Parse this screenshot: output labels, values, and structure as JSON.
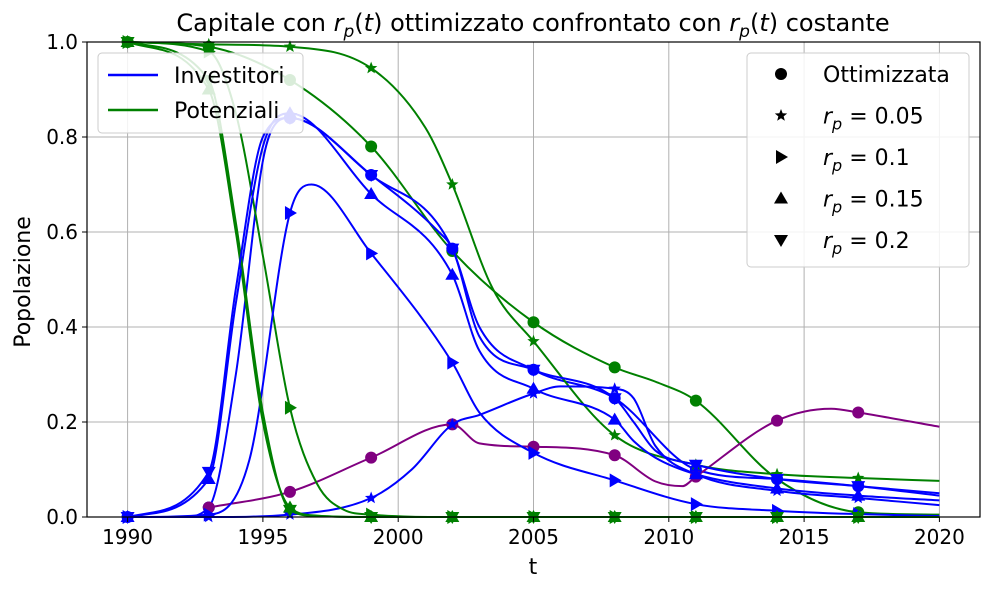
{
  "chart_data": {
    "type": "line",
    "title_parts": [
      "Capitale con ",
      "r",
      "p",
      "(",
      "t",
      ") ottimizzato confrontato con ",
      "r",
      "p",
      "(",
      "t",
      ") costante"
    ],
    "xlabel": "t",
    "ylabel": "Popolazione",
    "xlim": [
      1988.5,
      2021.5
    ],
    "ylim": [
      0,
      1.0
    ],
    "xticks": [
      1990,
      1995,
      2000,
      2005,
      2010,
      2015,
      2020
    ],
    "yticks": [
      0.0,
      0.2,
      0.4,
      0.6,
      0.8,
      1.0
    ],
    "xtick_labels": [
      "1990",
      "1995",
      "2000",
      "2005",
      "2010",
      "2015",
      "2020"
    ],
    "ytick_labels": [
      "0.0",
      "0.2",
      "0.4",
      "0.6",
      "0.8",
      "1.0"
    ],
    "grid": true,
    "colors": {
      "investitori": "#0000ff",
      "potenziali": "#008000",
      "optimized": "#800080"
    },
    "legend_color": {
      "placement": "upper-left",
      "entries": [
        {
          "label": "Investitori",
          "color": "#0000ff"
        },
        {
          "label": "Potenziali",
          "color": "#008000"
        }
      ]
    },
    "legend_marker": {
      "placement": "upper-right",
      "entries": [
        {
          "marker": "circle",
          "label": "Ottimizzata",
          "math": false
        },
        {
          "marker": "star",
          "label": "r_p = 0.05",
          "math": true,
          "value": "0.05"
        },
        {
          "marker": "triangle-right",
          "label": "r_p = 0.1",
          "math": true,
          "value": "0.1"
        },
        {
          "marker": "triangle-up",
          "label": "r_p = 0.15",
          "math": true,
          "value": "0.15"
        },
        {
          "marker": "triangle-down",
          "label": "r_p = 0.2",
          "math": true,
          "value": "0.2"
        }
      ]
    },
    "series": [
      {
        "group": "potenziali",
        "color": "#008000",
        "marker": "circle",
        "x": [
          1990,
          1993,
          1996,
          1999,
          2002,
          2005,
          2008,
          2009.5,
          2011,
          2014,
          2017,
          2020
        ],
        "y": [
          1.0,
          0.99,
          0.92,
          0.78,
          0.56,
          0.41,
          0.315,
          0.285,
          0.245,
          0.08,
          0.01,
          0.005
        ]
      },
      {
        "group": "investitori",
        "color": "#0000ff",
        "marker": "circle",
        "x": [
          1990,
          1992,
          1993,
          1994,
          1995,
          1995.5,
          1996,
          1999,
          2001.5,
          2002,
          2003,
          2005,
          2008,
          2011,
          2014,
          2017,
          2020
        ],
        "y": [
          0.0,
          0.0,
          0.02,
          0.3,
          0.75,
          0.83,
          0.84,
          0.72,
          0.6,
          0.565,
          0.4,
          0.31,
          0.25,
          0.1,
          0.08,
          0.065,
          0.045
        ]
      },
      {
        "group": "optimized",
        "color": "#800080",
        "marker": "circle",
        "x": [
          1993,
          1996,
          1999,
          2002,
          2003,
          2005,
          2008,
          2009.5,
          2010.5,
          2011,
          2014,
          2016,
          2017,
          2020
        ],
        "y": [
          0.02,
          0.053,
          0.125,
          0.195,
          0.155,
          0.148,
          0.13,
          0.075,
          0.065,
          0.085,
          0.203,
          0.228,
          0.22,
          0.19
        ]
      },
      {
        "group": "potenziali",
        "color": "#008000",
        "marker": "star",
        "x": [
          1990,
          1993,
          1996,
          1999,
          2001,
          2002,
          2003.5,
          2005,
          2008,
          2011,
          2014,
          2017,
          2020
        ],
        "y": [
          1.0,
          0.995,
          0.99,
          0.945,
          0.82,
          0.7,
          0.48,
          0.37,
          0.172,
          0.11,
          0.09,
          0.082,
          0.076
        ]
      },
      {
        "group": "investitori",
        "color": "#0000ff",
        "marker": "star",
        "x": [
          1990,
          1993,
          1996,
          1999,
          2000.5,
          2002,
          2003,
          2005,
          2006,
          2008,
          2008.7,
          2009.5,
          2011,
          2014,
          2017,
          2020
        ],
        "y": [
          0.0,
          0.0,
          0.005,
          0.04,
          0.1,
          0.195,
          0.215,
          0.26,
          0.275,
          0.27,
          0.25,
          0.15,
          0.09,
          0.055,
          0.04,
          0.025
        ]
      },
      {
        "group": "potenziali",
        "color": "#008000",
        "marker": "triangle-right",
        "x": [
          1990,
          1993,
          1994,
          1995,
          1996,
          1997,
          1998,
          1999,
          2002,
          2020
        ],
        "y": [
          1.0,
          0.98,
          0.85,
          0.55,
          0.23,
          0.07,
          0.015,
          0.005,
          0.0,
          0.0
        ]
      },
      {
        "group": "investitori",
        "color": "#0000ff",
        "marker": "triangle-right",
        "x": [
          1990,
          1993,
          1994.5,
          1996,
          1996.8,
          1999,
          2002,
          2003,
          2005,
          2008,
          2011,
          2014,
          2017,
          2020
        ],
        "y": [
          0.0,
          0.005,
          0.12,
          0.64,
          0.7,
          0.555,
          0.325,
          0.22,
          0.135,
          0.077,
          0.027,
          0.013,
          0.006,
          0.002
        ]
      },
      {
        "group": "potenziali",
        "color": "#008000",
        "marker": "triangle-up",
        "x": [
          1990,
          1993,
          1994,
          1995,
          1996,
          1997,
          1999,
          2020
        ],
        "y": [
          1.0,
          0.9,
          0.6,
          0.2,
          0.02,
          0.003,
          0.0,
          0.0
        ]
      },
      {
        "group": "investitori",
        "color": "#0000ff",
        "marker": "triangle-up",
        "x": [
          1990,
          1993,
          1994,
          1995,
          1996,
          1999,
          2002,
          2003,
          2005,
          2008,
          2008.7,
          2009.5,
          2011,
          2014,
          2017,
          2020
        ],
        "y": [
          0.0,
          0.08,
          0.45,
          0.78,
          0.85,
          0.68,
          0.51,
          0.35,
          0.27,
          0.205,
          0.16,
          0.125,
          0.09,
          0.06,
          0.045,
          0.035
        ]
      },
      {
        "group": "potenziali",
        "color": "#008000",
        "marker": "triangle-down",
        "x": [
          1990,
          1993,
          1994,
          1995,
          1996,
          1997,
          1999,
          2020
        ],
        "y": [
          1.0,
          0.92,
          0.62,
          0.22,
          0.015,
          0.002,
          0.0,
          0.0
        ]
      },
      {
        "group": "investitori",
        "color": "#0000ff",
        "marker": "triangle-down",
        "x": [
          1990,
          1993,
          1994,
          1995,
          1996,
          1999,
          2002,
          2003,
          2005,
          2008,
          2008.7,
          2009.5,
          2011,
          2014,
          2017,
          2020
        ],
        "y": [
          0.0,
          0.095,
          0.48,
          0.8,
          0.84,
          0.72,
          0.565,
          0.38,
          0.31,
          0.25,
          0.2,
          0.14,
          0.11,
          0.08,
          0.065,
          0.05
        ]
      }
    ],
    "marker_x": [
      1990,
      1993,
      1996,
      1999,
      2002,
      2005,
      2008,
      2011,
      2014,
      2017
    ]
  }
}
